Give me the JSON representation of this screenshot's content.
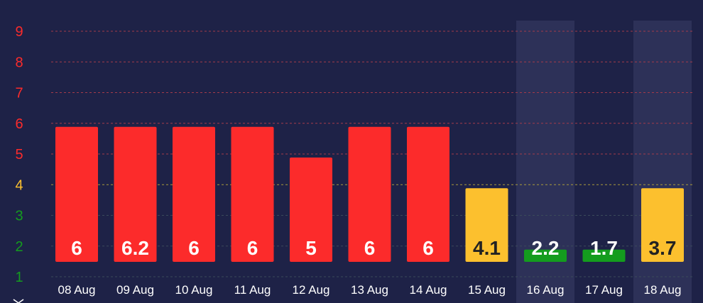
{
  "chart_data": {
    "type": "bar",
    "categories": [
      "08 Aug",
      "09 Aug",
      "10 Aug",
      "11 Aug",
      "12 Aug",
      "13 Aug",
      "14 Aug",
      "15 Aug",
      "16 Aug",
      "17 Aug",
      "18 Aug"
    ],
    "values": [
      6,
      6.2,
      6,
      6,
      5,
      6,
      6,
      4.1,
      2.2,
      1.7,
      3.7
    ],
    "bar_display_levels": [
      6,
      6,
      6,
      6,
      5,
      6,
      6,
      4,
      2,
      2,
      4
    ],
    "bar_colors": [
      "#fc2b2b",
      "#fc2b2b",
      "#fc2b2b",
      "#fc2b2b",
      "#fc2b2b",
      "#fc2b2b",
      "#fc2b2b",
      "#fcc02e",
      "#149c1e",
      "#149c1e",
      "#fcc02e"
    ],
    "label_colors": [
      "#ffffff",
      "#ffffff",
      "#ffffff",
      "#ffffff",
      "#ffffff",
      "#ffffff",
      "#ffffff",
      "#222222",
      "#ffffff",
      "#ffffff",
      "#222222"
    ],
    "highlighted": [
      "16 Aug",
      "18 Aug"
    ],
    "y_ticks": [
      "1",
      "2",
      "3",
      "4",
      "5",
      "6",
      "7",
      "8",
      "9"
    ],
    "y_tick_colors": [
      "#149c1e",
      "#149c1e",
      "#149c1e",
      "#fcc02e",
      "#fc2b2b",
      "#fc2b2b",
      "#fc2b2b",
      "#fc2b2b",
      "#fc2b2b"
    ],
    "ylim": [
      1,
      9
    ],
    "grid": true,
    "title": "",
    "xlabel": "",
    "ylabel": "",
    "colors": {
      "background": "#1e2247",
      "highlight": "#2d3158",
      "grid_red": "#a33a4a",
      "grid_yellow": "#a89a3a",
      "grid_green": "#3a4a5a"
    }
  }
}
